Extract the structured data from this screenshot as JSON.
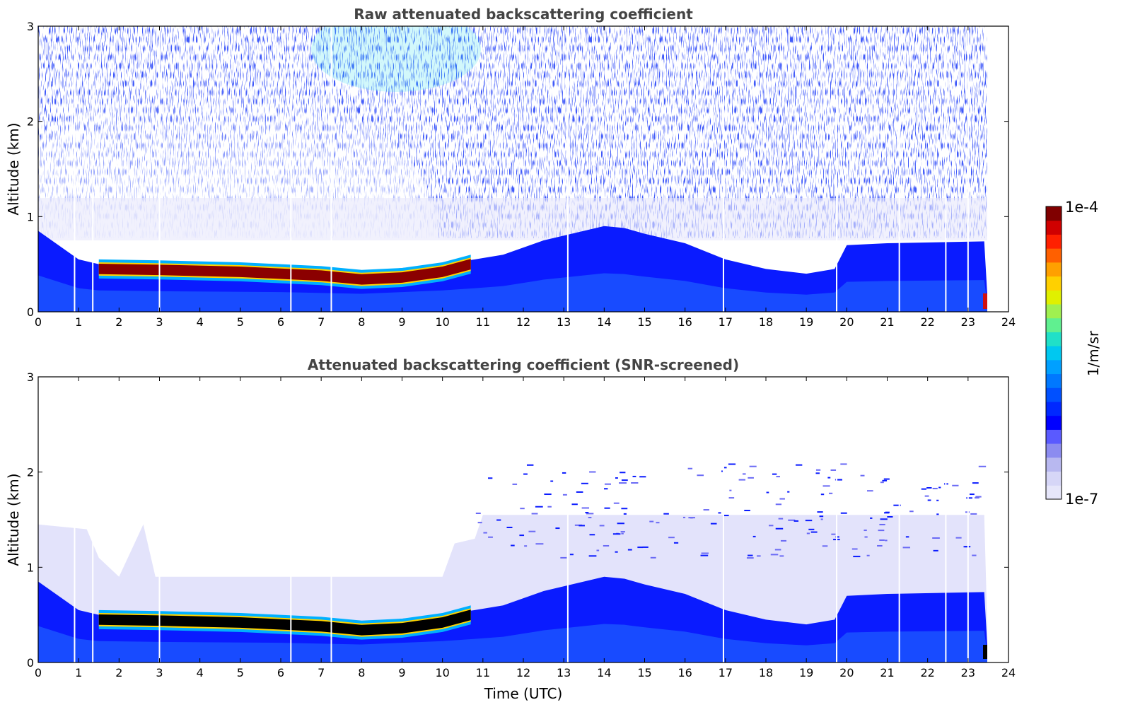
{
  "chart_data": [
    {
      "type": "heatmap",
      "title": "Raw attenuated backscattering coefficient",
      "xlabel": "",
      "ylabel": "Altitude (km)",
      "xlim": [
        0,
        24
      ],
      "ylim": [
        0,
        3
      ],
      "xticks": [
        "0",
        "1",
        "2",
        "3",
        "4",
        "5",
        "6",
        "7",
        "8",
        "9",
        "10",
        "11",
        "12",
        "13",
        "14",
        "15",
        "16",
        "17",
        "18",
        "19",
        "20",
        "21",
        "22",
        "23",
        "24"
      ],
      "yticks": [
        "0",
        "1",
        "2",
        "3"
      ],
      "data_end_hour": 23.5,
      "layer_top_km": [
        [
          0.0,
          0.85
        ],
        [
          1.0,
          0.55
        ],
        [
          1.5,
          0.5
        ],
        [
          3.0,
          0.48
        ],
        [
          6.0,
          0.46
        ],
        [
          8.0,
          0.42
        ],
        [
          10.0,
          0.5
        ],
        [
          10.8,
          0.55
        ],
        [
          11.5,
          0.6
        ],
        [
          12.5,
          0.75
        ],
        [
          13.0,
          0.8
        ],
        [
          13.5,
          0.85
        ],
        [
          14.0,
          0.9
        ],
        [
          14.5,
          0.88
        ],
        [
          15.0,
          0.82
        ],
        [
          16.0,
          0.72
        ],
        [
          17.0,
          0.55
        ],
        [
          18.0,
          0.45
        ],
        [
          19.0,
          0.4
        ],
        [
          19.7,
          0.45
        ],
        [
          20.0,
          0.7
        ],
        [
          21.0,
          0.72
        ],
        [
          23.4,
          0.74
        ]
      ],
      "aerosol_layer_km": [
        [
          1.5,
          0.45
        ],
        [
          3.0,
          0.44
        ],
        [
          5.0,
          0.42
        ],
        [
          7.0,
          0.38
        ],
        [
          8.0,
          0.34
        ],
        [
          9.0,
          0.36
        ],
        [
          10.0,
          0.42
        ],
        [
          10.7,
          0.5
        ]
      ],
      "data_gaps_hour": [
        0.9,
        1.35,
        3.0,
        6.25,
        7.25,
        13.1,
        16.95,
        19.75,
        21.3,
        22.45,
        23.0
      ]
    },
    {
      "type": "heatmap",
      "title": "Attenuated backscattering coefficient (SNR-screened)",
      "xlabel": "Time (UTC)",
      "ylabel": "Altitude (km)",
      "xlim": [
        0,
        24
      ],
      "ylim": [
        0,
        3
      ],
      "xticks": [
        "0",
        "1",
        "2",
        "3",
        "4",
        "5",
        "6",
        "7",
        "8",
        "9",
        "10",
        "11",
        "12",
        "13",
        "14",
        "15",
        "16",
        "17",
        "18",
        "19",
        "20",
        "21",
        "22",
        "23",
        "24"
      ],
      "yticks": [
        "0",
        "1",
        "2",
        "3"
      ],
      "data_end_hour": 23.5,
      "data_gaps_hour": [
        0.9,
        1.35,
        3.0,
        6.25,
        7.25,
        13.1,
        16.95,
        19.75,
        21.3,
        22.45,
        23.0
      ]
    }
  ],
  "colorbar": {
    "max_label": "1e-4",
    "min_label": "1e-7",
    "unit": "1/m/sr",
    "colors": [
      "#e6e6fa",
      "#d6d6f7",
      "#b8b8f0",
      "#8c8cf0",
      "#5a5aff",
      "#0000ff",
      "#0028ff",
      "#0050ff",
      "#0078ff",
      "#00a0ff",
      "#00c8f0",
      "#20e0c8",
      "#60f090",
      "#a0f050",
      "#e0f000",
      "#ffd000",
      "#ffa000",
      "#ff6000",
      "#ff2000",
      "#d00000",
      "#800000"
    ]
  }
}
